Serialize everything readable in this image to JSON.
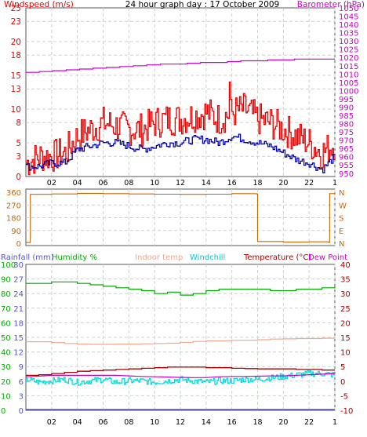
{
  "title": "24 hour graph day : 17 October 2009",
  "x_ticks": [
    "02",
    "04",
    "06",
    "08",
    "10",
    "12",
    "14",
    "16",
    "18",
    "20",
    "22",
    "1"
  ],
  "colors": {
    "wind_speed": "#ee0000",
    "wind_avg": "#0000aa",
    "barometer": "#cc00cc",
    "wind_dir": "#cc6600",
    "rainfall": "#5555cc",
    "humidity": "#00aa00",
    "indoor": "#f0a890",
    "windchill": "#00dddd",
    "temperature": "#aa0000",
    "dewpoint": "#cc00cc"
  },
  "chart_data": [
    {
      "type": "line",
      "panel": "wind_barometer",
      "title": "24 hour graph day : 17 October 2009",
      "left_label": "Windspeed (m/s)",
      "right_label": "Barometer (hPa)",
      "left_ticks": [
        "25",
        "23",
        "20",
        "18",
        "15",
        "13",
        "10",
        "8",
        "5",
        "3",
        "0"
      ],
      "right_ticks": [
        "1050",
        "1045",
        "1040",
        "1035",
        "1030",
        "1025",
        "1020",
        "1015",
        "1010",
        "1005",
        "1000",
        "995",
        "990",
        "985",
        "980",
        "975",
        "970",
        "965",
        "960",
        "955",
        "950"
      ],
      "ylim_left": [
        0,
        25
      ],
      "ylim_right": [
        948,
        1050
      ],
      "grid": true,
      "series": [
        {
          "key": "barometer",
          "axis": "right",
          "values": [
            1011,
            1011.5,
            1012,
            1012.5,
            1013,
            1013.5,
            1014,
            1014.5,
            1015,
            1015.5,
            1016,
            1016,
            1016.5,
            1017,
            1017,
            1017.5,
            1018,
            1018,
            1018.5,
            1018.5,
            1019,
            1019,
            1019,
            1019
          ]
        },
        {
          "key": "wind_speed",
          "axis": "left",
          "values": [
            2,
            3,
            3,
            3.5,
            6,
            7,
            8,
            7.5,
            7,
            7,
            8,
            8.5,
            8.5,
            9,
            9.5,
            8.5,
            9.5,
            10,
            8.5,
            8,
            7,
            6,
            5,
            3.5,
            5
          ]
        },
        {
          "key": "wind_avg",
          "axis": "left",
          "values": [
            1.5,
            1.5,
            2,
            2,
            4,
            4.5,
            5,
            5,
            4.5,
            4,
            4.5,
            5,
            5,
            5.5,
            5.5,
            5,
            6,
            5.5,
            5,
            4.5,
            3.5,
            2.5,
            2,
            1,
            3
          ]
        }
      ]
    },
    {
      "type": "line",
      "panel": "wind_direction",
      "left_ticks": [
        "360",
        "270",
        "180",
        "90",
        "0"
      ],
      "right_ticks": [
        "N",
        "W",
        "S",
        "E",
        "N"
      ],
      "ylim": [
        0,
        360
      ],
      "grid": true,
      "series": [
        {
          "key": "wind_dir",
          "times": [
            0,
            0.3,
            0.35,
            2,
            4,
            6,
            8,
            10,
            12,
            14,
            16,
            17.9,
            18,
            20,
            22,
            23.5,
            23.6,
            24
          ],
          "values": [
            5,
            5,
            345,
            348,
            352,
            350,
            348,
            346,
            345,
            346,
            350,
            348,
            12,
            8,
            10,
            6,
            350,
            355
          ]
        }
      ]
    },
    {
      "type": "line",
      "panel": "temp_humidity",
      "left_ticks": [
        "100",
        "90",
        "80",
        "70",
        "60",
        "50",
        "40",
        "30",
        "20",
        "10",
        "0"
      ],
      "rain_ticks": [
        "30",
        "27",
        "24",
        "21",
        "18",
        "15",
        "12",
        "9",
        "6",
        "3",
        "0"
      ],
      "right_ticks": [
        "40",
        "35",
        "30",
        "25",
        "20",
        "15",
        "10",
        "5",
        "0",
        "-5",
        "-10"
      ],
      "ylim_left": [
        0,
        100
      ],
      "ylim_right": [
        -10,
        40
      ],
      "legend": [
        "Rainfall (mm)",
        "Humidity %",
        "Indoor temp",
        "Windchill",
        "Temperature (°C)",
        "Dew Point"
      ],
      "grid": true,
      "series": [
        {
          "key": "humidity",
          "axis": "left",
          "values": [
            87,
            87,
            88,
            88,
            87,
            86,
            85,
            84,
            83,
            82,
            80,
            81,
            79,
            80,
            82,
            83,
            83,
            83,
            83,
            82,
            82,
            83,
            83,
            84,
            85
          ]
        },
        {
          "key": "indoor",
          "axis": "right",
          "values": [
            13.5,
            13.5,
            13.2,
            12.9,
            12.7,
            12.6,
            12.6,
            12.7,
            12.7,
            12.8,
            12.9,
            13.0,
            13.3,
            13.6,
            13.8,
            13.8,
            14.0,
            14.0,
            14.2,
            14.4,
            14.5,
            14.6,
            14.6,
            14.7,
            14.7
          ]
        },
        {
          "key": "temperature",
          "axis": "right",
          "values": [
            2.0,
            2.2,
            2.6,
            3.0,
            3.4,
            3.6,
            3.8,
            4.0,
            4.2,
            4.4,
            4.6,
            4.8,
            4.8,
            4.8,
            4.6,
            4.6,
            4.4,
            4.3,
            4.2,
            4.2,
            4.2,
            4.0,
            4.0,
            3.8,
            3.8
          ]
        },
        {
          "key": "dewpoint",
          "axis": "right",
          "values": [
            1.5,
            1.7,
            2.0,
            2.0,
            2.0,
            2.0,
            2.0,
            2.0,
            1.8,
            1.6,
            1.5,
            1.4,
            1.3,
            1.2,
            1.2,
            1.5,
            1.6,
            1.6,
            1.7,
            1.8,
            1.8,
            2.0,
            2.2,
            2.4,
            2.6
          ]
        },
        {
          "key": "windchill",
          "axis": "right",
          "values": [
            0.5,
            -0.5,
            0.0,
            0.5,
            -0.5,
            0.0,
            0.5,
            -0.5,
            0.0,
            0.0,
            -0.5,
            0.0,
            0.5,
            0.0,
            -0.5,
            0.0,
            0.0,
            0.5,
            0.5,
            1.0,
            1.5,
            2.0,
            2.5,
            2.5,
            2.0
          ]
        },
        {
          "key": "rainfall",
          "axis": "rain",
          "values": [
            0,
            0
          ]
        }
      ]
    }
  ]
}
